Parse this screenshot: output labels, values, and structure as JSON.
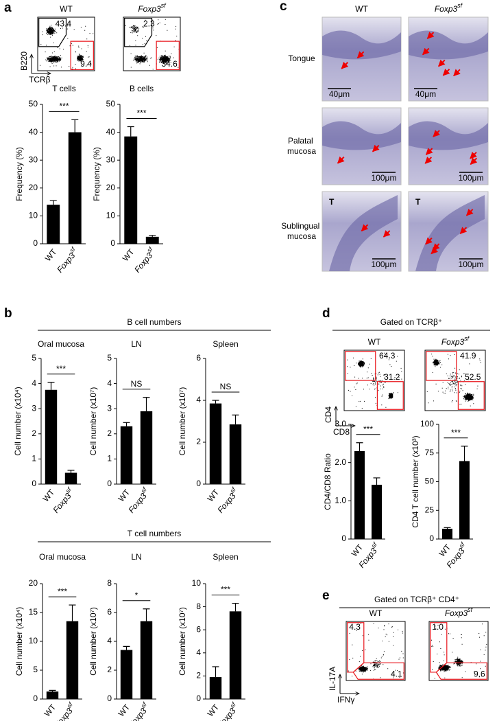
{
  "panel_labels": [
    "a",
    "b",
    "c",
    "d",
    "e"
  ],
  "flow": {
    "a": {
      "columns": [
        "WT",
        "Foxp3sf"
      ],
      "y_axis": "B220",
      "x_axis": "TCRβ",
      "gates": [
        [
          43.4,
          9.4
        ],
        [
          2.3,
          34.6
        ]
      ]
    },
    "d": {
      "header": "Gated on TCRβ⁺",
      "columns": [
        "WT",
        "Foxp3sf"
      ],
      "y_axis": "CD4",
      "x_axis": "CD8",
      "gates": [
        [
          64.3,
          31.2
        ],
        [
          41.9,
          52.5
        ]
      ]
    },
    "e": {
      "header": "Gated on TCRβ⁺ CD4⁺",
      "columns": [
        "WT",
        "Foxp3sf"
      ],
      "y_axis": "IL-17A",
      "x_axis": "IFNγ",
      "gates": [
        [
          4.3,
          4.1
        ],
        [
          {
            "value": 1,
            "label": "1.0"
          },
          9.6
        ]
      ]
    }
  },
  "histology": {
    "columns": [
      "WT",
      "Foxp3sf"
    ],
    "rows": [
      {
        "label": "Tongue",
        "scale_bars": [
          "40μm",
          "40μm"
        ]
      },
      {
        "label": "Palatal mucosa",
        "scale_bars": [
          "100μm",
          "100μm"
        ]
      },
      {
        "label": "Sublingual mucosa",
        "scale_bars": [
          "100μm",
          "100μm"
        ],
        "markers": [
          "T",
          "T"
        ]
      }
    ]
  },
  "group_titles": [
    "B cell numbers",
    "T cell numbers"
  ],
  "chart_data": [
    {
      "type": "bar",
      "title": "T cells",
      "categories": [
        "WT",
        "Foxp3sf"
      ],
      "values": [
        14,
        40
      ],
      "errors": [
        1.5,
        4.5
      ],
      "ylim": [
        0,
        50
      ],
      "yticks": [
        0,
        10,
        20,
        30,
        40,
        50
      ],
      "ylabel": "Frequency (%)",
      "annotation": "***",
      "color": "#000000"
    },
    {
      "type": "bar",
      "title": "B cells",
      "categories": [
        "WT",
        "Foxp3sf"
      ],
      "values": [
        38.5,
        2.5
      ],
      "errors": [
        3.5,
        0.5
      ],
      "ylim": [
        0,
        50
      ],
      "yticks": [
        0,
        10,
        20,
        30,
        40,
        50
      ],
      "ylabel": "Frequency (%)",
      "annotation": "***",
      "color": "#000000"
    },
    {
      "type": "bar",
      "title": "Oral mucosa",
      "categories": [
        "WT",
        "Foxp3sf"
      ],
      "values": [
        3.75,
        0.45
      ],
      "errors": [
        0.3,
        0.1
      ],
      "ylim": [
        0,
        5
      ],
      "yticks": [
        0,
        1,
        2,
        3,
        4,
        5
      ],
      "ylabel": "Cell number (x10⁴)",
      "annotation": "***",
      "color": "#000000"
    },
    {
      "type": "bar",
      "title": "LN",
      "categories": [
        "WT",
        "Foxp3sf"
      ],
      "values": [
        2.3,
        2.9
      ],
      "errors": [
        0.15,
        0.55
      ],
      "ylim": [
        0,
        5
      ],
      "yticks": [
        0,
        1,
        2,
        3,
        4,
        5
      ],
      "ylabel": "Cell number (x10⁷)",
      "annotation": "NS",
      "color": "#000000"
    },
    {
      "type": "bar",
      "title": "Spleen",
      "categories": [
        "WT",
        "Foxp3sf"
      ],
      "values": [
        3.85,
        2.85
      ],
      "errors": [
        0.15,
        0.45
      ],
      "ylim": [
        0,
        6
      ],
      "yticks": [
        0,
        2,
        4,
        6
      ],
      "ylabel": "Cell number (x10⁷)",
      "annotation": "NS",
      "color": "#000000"
    },
    {
      "type": "bar",
      "title": "Oral mucosa",
      "categories": [
        "WT",
        "Foxp3sf"
      ],
      "values": [
        1.3,
        13.5
      ],
      "errors": [
        0.2,
        2.8
      ],
      "ylim": [
        0,
        20
      ],
      "yticks": [
        0,
        5,
        10,
        15,
        20
      ],
      "ylabel": "Cell number (x10⁴)",
      "annotation": "***",
      "color": "#000000"
    },
    {
      "type": "bar",
      "title": "LN",
      "categories": [
        "WT",
        "Foxp3sf"
      ],
      "values": [
        3.4,
        5.4
      ],
      "errors": [
        0.25,
        0.85
      ],
      "ylim": [
        0,
        8
      ],
      "yticks": [
        0,
        2,
        4,
        6,
        8
      ],
      "ylabel": "Cell number (x10⁷)",
      "annotation": "*",
      "color": "#000000"
    },
    {
      "type": "bar",
      "title": "Spleen",
      "categories": [
        "WT",
        "Foxp3sf"
      ],
      "values": [
        1.9,
        7.6
      ],
      "errors": [
        0.9,
        0.7
      ],
      "ylim": [
        0,
        10
      ],
      "yticks": [
        0,
        2,
        4,
        6,
        8,
        10
      ],
      "ylabel": "Cell number (x10⁷)",
      "annotation": "***",
      "color": "#000000"
    },
    {
      "type": "bar",
      "categories": [
        "WT",
        "Foxp3sf"
      ],
      "values": [
        2.3,
        1.42
      ],
      "errors": [
        0.22,
        0.18
      ],
      "ylim": [
        0,
        3
      ],
      "yticks": [
        0,
        {
          "value": 1,
          "label": "1.0"
        },
        {
          "value": 2,
          "label": "2.0"
        },
        {
          "value": 3,
          "label": "3.0"
        }
      ],
      "ylabel": "CD4/CD8 Ratio",
      "annotation": "***",
      "color": "#000000"
    },
    {
      "type": "bar",
      "categories": [
        "WT",
        "Foxp3sf"
      ],
      "values": [
        9,
        68
      ],
      "errors": [
        1,
        13
      ],
      "ylim": [
        0,
        100
      ],
      "yticks": [
        0,
        25,
        50,
        75,
        100
      ],
      "ylabel": "CD4 T cell number (x10³)",
      "annotation": "***",
      "color": "#000000"
    }
  ]
}
